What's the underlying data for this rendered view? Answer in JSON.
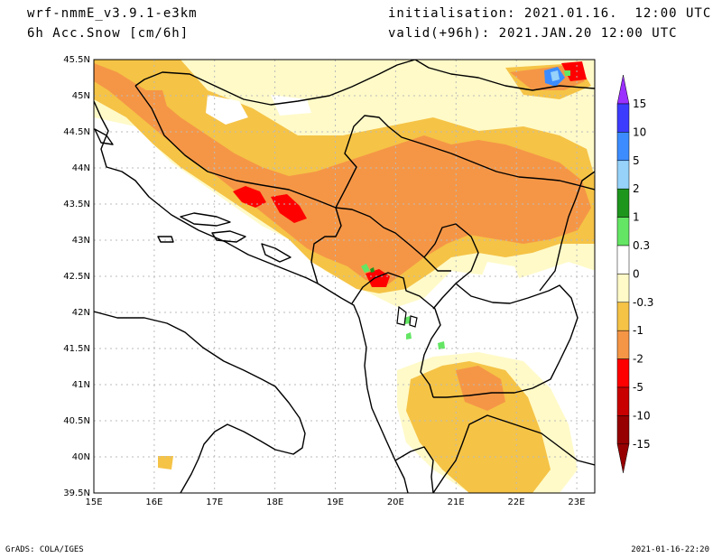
{
  "header": {
    "model": "wrf-nmmE_v3.9.1-e3km",
    "field": "6h Acc.Snow [cm/6h]",
    "init": "initialisation: 2021.01.16.  12:00 UTC",
    "valid": "valid(+96h): 2021.JAN.20 12:00 UTC"
  },
  "map": {
    "lon_range": [
      15,
      23.3
    ],
    "lat_range": [
      39.5,
      45.5
    ],
    "lon_ticks": [
      "15E",
      "16E",
      "17E",
      "18E",
      "19E",
      "20E",
      "21E",
      "22E",
      "23E"
    ],
    "lat_ticks": [
      "39.5N",
      "40N",
      "40.5N",
      "41N",
      "41.5N",
      "42N",
      "42.5N",
      "43N",
      "43.5N",
      "44N",
      "44.5N",
      "45N",
      "45.5N"
    ]
  },
  "colorbar": {
    "labels": [
      "15",
      "10",
      "5",
      "2",
      "1",
      "0.3",
      "0",
      "-0.3",
      "-1",
      "-2",
      "-5",
      "-10",
      "-15"
    ],
    "colors": [
      "#9b30ff",
      "#3c3cff",
      "#3c8cff",
      "#96d2fa",
      "#1e961e",
      "#64e664",
      "#ffffff",
      "#fffac8",
      "#f5c346",
      "#f59646",
      "#ff0000",
      "#c80000",
      "#960000"
    ]
  },
  "footer": {
    "left": "GrADS: COLA/IGES",
    "right": "2021-01-16-22:20"
  }
}
